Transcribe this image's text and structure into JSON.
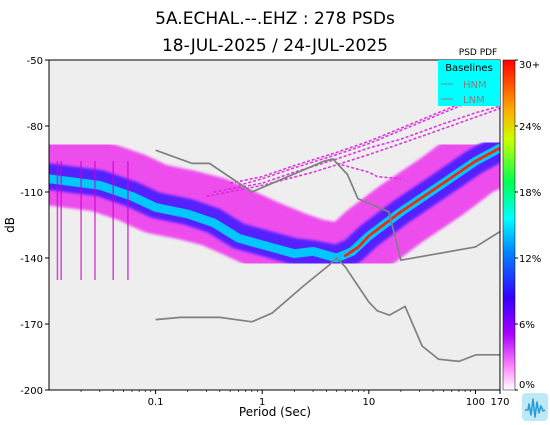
{
  "chart_data": {
    "type": "heatmap",
    "title_line1": "5A.ECHAL.--.EHZ : 278 PSDs",
    "title_line2": "18-JUL-2025 / 24-JUL-2025",
    "xlabel": "Period (Sec)",
    "ylabel": "dB",
    "x_scale": "log",
    "xlim": [
      0.01,
      170
    ],
    "ylim": [
      -200,
      -50
    ],
    "x_ticks": [
      {
        "value": 0.1,
        "label": "0.1"
      },
      {
        "value": 1,
        "label": "1"
      },
      {
        "value": 10,
        "label": "10"
      },
      {
        "value": 100,
        "label": "100"
      },
      {
        "value": 170,
        "label": "170"
      }
    ],
    "y_ticks": [
      {
        "value": -50,
        "label": "-50"
      },
      {
        "value": -80,
        "label": "-80"
      },
      {
        "value": -110,
        "label": "-110"
      },
      {
        "value": -140,
        "label": "-140"
      },
      {
        "value": -170,
        "label": "-170"
      },
      {
        "value": -200,
        "label": "-200"
      }
    ],
    "grid": false,
    "colorbar": {
      "title": "PSD PDF",
      "tick_labels": [
        "30+",
        "24%",
        "18%",
        "12%",
        "6%",
        "0%"
      ],
      "tick_values": [
        30,
        24,
        18,
        12,
        6,
        0
      ],
      "colors": [
        "#ffffff",
        "#ff00ff",
        "#8800ff",
        "#0000ff",
        "#00ffff",
        "#00ff66",
        "#ffff00",
        "#ff8800",
        "#ff0000"
      ]
    },
    "legend": {
      "title": "Baselines",
      "placement": "top-right",
      "items": [
        "HNM",
        "LNM"
      ],
      "background": "#00ffff"
    },
    "series": [
      {
        "name": "HNM",
        "color": "#808080",
        "points": [
          [
            0.1,
            -91
          ],
          [
            0.22,
            -97
          ],
          [
            0.32,
            -97
          ],
          [
            0.8,
            -110
          ],
          [
            3.8,
            -96
          ],
          [
            4.6,
            -95
          ],
          [
            6.3,
            -102
          ],
          [
            7.9,
            -113
          ],
          [
            15.4,
            -119
          ],
          [
            20,
            -141
          ],
          [
            100,
            -135
          ],
          [
            170,
            -128
          ]
        ]
      },
      {
        "name": "LNM",
        "color": "#808080",
        "points": [
          [
            0.1,
            -168
          ],
          [
            0.17,
            -167
          ],
          [
            0.4,
            -167
          ],
          [
            0.8,
            -169
          ],
          [
            1.24,
            -165
          ],
          [
            2.4,
            -153
          ],
          [
            4.3,
            -143
          ],
          [
            5,
            -140
          ],
          [
            6,
            -144
          ],
          [
            10,
            -160
          ],
          [
            12,
            -164
          ],
          [
            15.6,
            -166
          ],
          [
            21.9,
            -162
          ],
          [
            31.6,
            -180
          ],
          [
            45,
            -186
          ],
          [
            70,
            -187
          ],
          [
            101,
            -184
          ],
          [
            170,
            -184
          ]
        ]
      }
    ],
    "pdf_bands": [
      {
        "level": "low",
        "color": "#ee33ee",
        "thickness_db": 32,
        "points": [
          [
            0.01,
            -100
          ],
          [
            0.03,
            -103
          ],
          [
            0.06,
            -108
          ],
          [
            0.1,
            -113
          ],
          [
            0.2,
            -116
          ],
          [
            0.35,
            -119
          ],
          [
            0.6,
            -124
          ],
          [
            1,
            -129
          ],
          [
            2,
            -135
          ],
          [
            3,
            -138
          ],
          [
            5,
            -140
          ],
          [
            7,
            -138
          ],
          [
            10,
            -131
          ],
          [
            20,
            -120
          ],
          [
            50,
            -107
          ],
          [
            100,
            -96
          ],
          [
            170,
            -91
          ]
        ]
      },
      {
        "level": "mid",
        "color": "#5522ff",
        "thickness_db": 12,
        "points": [
          [
            0.01,
            -103
          ],
          [
            0.03,
            -106
          ],
          [
            0.06,
            -111
          ],
          [
            0.1,
            -116
          ],
          [
            0.2,
            -119
          ],
          [
            0.35,
            -123
          ],
          [
            0.6,
            -130
          ],
          [
            1,
            -133
          ],
          [
            2,
            -137
          ],
          [
            3,
            -138
          ],
          [
            5,
            -140
          ],
          [
            7,
            -137
          ],
          [
            10,
            -130
          ],
          [
            20,
            -119
          ],
          [
            50,
            -106
          ],
          [
            100,
            -96
          ],
          [
            170,
            -90
          ]
        ]
      },
      {
        "level": "high",
        "color": "#00c8ff",
        "thickness_db": 4,
        "points": [
          [
            0.01,
            -104
          ],
          [
            0.03,
            -107
          ],
          [
            0.06,
            -112
          ],
          [
            0.1,
            -117
          ],
          [
            0.2,
            -120
          ],
          [
            0.35,
            -124
          ],
          [
            0.6,
            -131
          ],
          [
            1,
            -134
          ],
          [
            2,
            -138
          ],
          [
            3,
            -137
          ],
          [
            5,
            -140
          ],
          [
            7,
            -137
          ],
          [
            10,
            -130
          ],
          [
            20,
            -119
          ],
          [
            50,
            -106
          ],
          [
            100,
            -96
          ],
          [
            170,
            -90
          ]
        ]
      },
      {
        "level": "peak",
        "color": "#ff2200",
        "thickness_db": 1.2,
        "points": [
          [
            6,
            -139
          ],
          [
            8,
            -135
          ],
          [
            10,
            -130
          ],
          [
            20,
            -119
          ],
          [
            50,
            -106
          ],
          [
            100,
            -96
          ],
          [
            170,
            -90
          ]
        ]
      }
    ],
    "upper_traces": [
      {
        "points": [
          [
            0.5,
            -106
          ],
          [
            1,
            -103
          ],
          [
            2,
            -98
          ],
          [
            5,
            -92
          ],
          [
            10,
            -87
          ],
          [
            20,
            -81
          ],
          [
            50,
            -73
          ],
          [
            100,
            -67
          ],
          [
            170,
            -62
          ]
        ]
      },
      {
        "points": [
          [
            0.6,
            -107
          ],
          [
            1,
            -104
          ],
          [
            2,
            -99
          ],
          [
            5,
            -93
          ],
          [
            10,
            -88
          ],
          [
            20,
            -82
          ],
          [
            50,
            -74
          ],
          [
            100,
            -68
          ],
          [
            170,
            -63
          ]
        ]
      },
      {
        "points": [
          [
            0.35,
            -110
          ],
          [
            1,
            -106
          ],
          [
            2,
            -101
          ],
          [
            5,
            -95
          ],
          [
            10,
            -90
          ],
          [
            20,
            -86
          ],
          [
            50,
            -79
          ],
          [
            100,
            -74
          ],
          [
            170,
            -71
          ]
        ]
      },
      {
        "points": [
          [
            0.3,
            -112
          ],
          [
            1,
            -107
          ],
          [
            3,
            -101
          ],
          [
            10,
            -93
          ],
          [
            30,
            -85
          ],
          [
            100,
            -76
          ],
          [
            170,
            -72
          ]
        ]
      },
      {
        "points": [
          [
            5,
            -97
          ],
          [
            10,
            -101
          ],
          [
            12,
            -103
          ],
          [
            20,
            -104
          ]
        ]
      }
    ],
    "left_magenta_spikes_x": [
      0.012,
      0.013,
      0.02,
      0.027,
      0.04,
      0.055
    ]
  },
  "icons": {
    "logo": "seismic-wave-logo-icon"
  }
}
